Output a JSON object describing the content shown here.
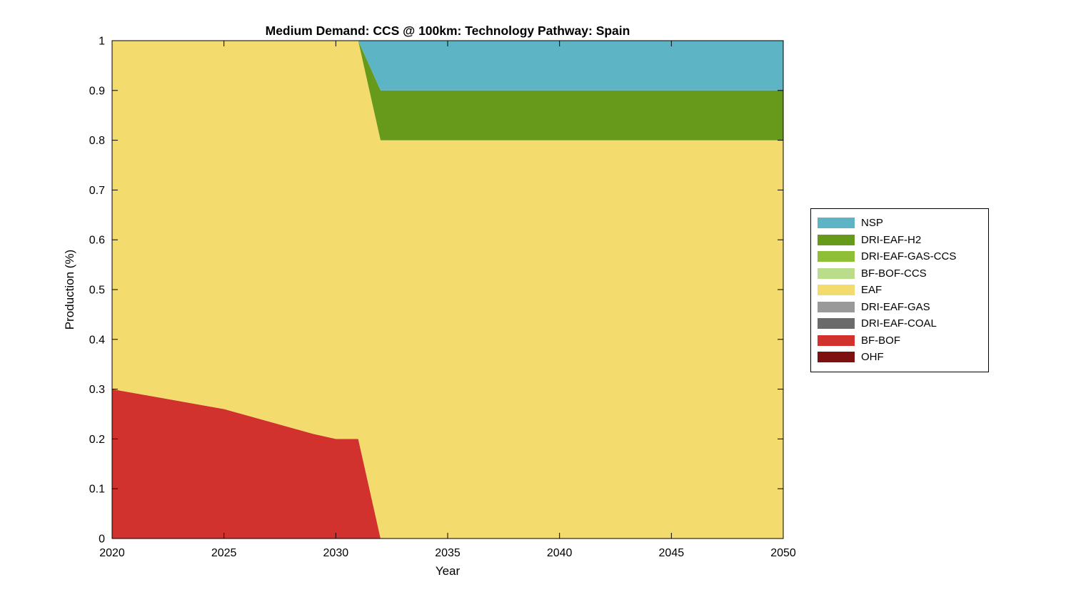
{
  "figure": {
    "background_color": "#ffffff"
  },
  "chart_data": {
    "type": "area",
    "title": "Medium Demand: CCS @ 100km: Technology Pathway: Spain",
    "xlabel": "Year",
    "ylabel": "Production (%)",
    "xlim": [
      2020,
      2050
    ],
    "ylim": [
      0,
      1
    ],
    "xticks": [
      2020,
      2025,
      2030,
      2035,
      2040,
      2045,
      2050
    ],
    "yticks": [
      0,
      0.1,
      0.2,
      0.3,
      0.4,
      0.5,
      0.6,
      0.7,
      0.8,
      0.9,
      1
    ],
    "ytick_labels": [
      "0",
      "0.1",
      "0.2",
      "0.3",
      "0.4",
      "0.5",
      "0.6",
      "0.7",
      "0.8",
      "0.9",
      "1"
    ],
    "grid": false,
    "x": [
      2020,
      2025,
      2029,
      2030,
      2031,
      2032,
      2050
    ],
    "series": [
      {
        "name": "OHF",
        "color": "#7f1010",
        "values": [
          0,
          0,
          0,
          0,
          0,
          0,
          0
        ]
      },
      {
        "name": "BF-BOF",
        "color": "#d2322e",
        "values": [
          0.3,
          0.26,
          0.21,
          0.2,
          0.2,
          0,
          0
        ]
      },
      {
        "name": "DRI-EAF-COAL",
        "color": "#6b6b6b",
        "values": [
          0,
          0,
          0,
          0,
          0,
          0,
          0
        ]
      },
      {
        "name": "DRI-EAF-GAS",
        "color": "#999999",
        "values": [
          0,
          0,
          0,
          0,
          0,
          0,
          0
        ]
      },
      {
        "name": "EAF",
        "color": "#f3db6d",
        "values": [
          0.7,
          0.74,
          0.79,
          0.8,
          0.8,
          0.8,
          0.8
        ]
      },
      {
        "name": "BF-BOF-CCS",
        "color": "#bbdc8b",
        "values": [
          0,
          0,
          0,
          0,
          0,
          0,
          0
        ]
      },
      {
        "name": "DRI-EAF-GAS-CCS",
        "color": "#8fbf36",
        "values": [
          0,
          0,
          0,
          0,
          0,
          0,
          0
        ]
      },
      {
        "name": "DRI-EAF-H2",
        "color": "#67991a",
        "values": [
          0,
          0,
          0,
          0,
          0,
          0.1,
          0.1
        ]
      },
      {
        "name": "NSP",
        "color": "#5cb4c4",
        "values": [
          0,
          0,
          0,
          0,
          0,
          0.1,
          0.1
        ]
      }
    ],
    "legend": {
      "position": "right-outside",
      "entries": [
        "NSP",
        "DRI-EAF-H2",
        "DRI-EAF-GAS-CCS",
        "BF-BOF-CCS",
        "EAF",
        "DRI-EAF-GAS",
        "DRI-EAF-COAL",
        "BF-BOF",
        "OHF"
      ]
    }
  }
}
